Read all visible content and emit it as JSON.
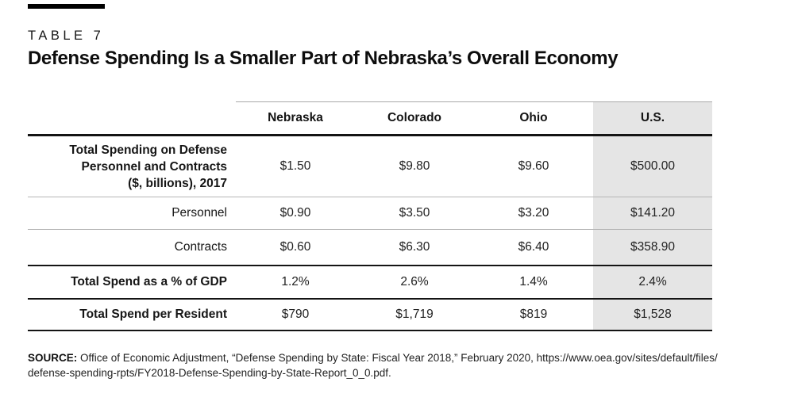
{
  "header": {
    "kicker": "TABLE 7",
    "title": "Defense Spending Is a Smaller Part of Nebraska’s Overall Economy"
  },
  "table": {
    "columns": [
      "Nebraska",
      "Colorado",
      "Ohio",
      "U.S."
    ],
    "highlight_column": "U.S.",
    "highlight_color": "#e5e5e5",
    "rows": [
      {
        "label": "Total Spending on Defense Personnel and Contracts ($, billions), 2017",
        "label_lines": [
          "Total Spending on Defense",
          "Personnel and Contracts",
          "($, billions), 2017"
        ],
        "values": [
          "$1.50",
          "$9.80",
          "$9.60",
          "$500.00"
        ]
      },
      {
        "label": "Personnel",
        "values": [
          "$0.90",
          "$3.50",
          "$3.20",
          "$141.20"
        ]
      },
      {
        "label": "Contracts",
        "values": [
          "$0.60",
          "$6.30",
          "$6.40",
          "$358.90"
        ]
      },
      {
        "label": "Total Spend as a % of GDP",
        "values": [
          "1.2%",
          "2.6%",
          "1.4%",
          "2.4%"
        ]
      },
      {
        "label": "Total Spend per Resident",
        "values": [
          "$790",
          "$1,719",
          "$819",
          "$1,528"
        ]
      }
    ]
  },
  "source": {
    "label": "SOURCE:",
    "line1": "Office of Economic Adjustment, “Defense Spending by State: Fiscal Year 2018,” February 2020, https://www.oea.gov/sites/default/files/",
    "line2": "defense-spending-rpts/FY2018-Defense-Spending-by-State-Report_0_0.pdf."
  }
}
